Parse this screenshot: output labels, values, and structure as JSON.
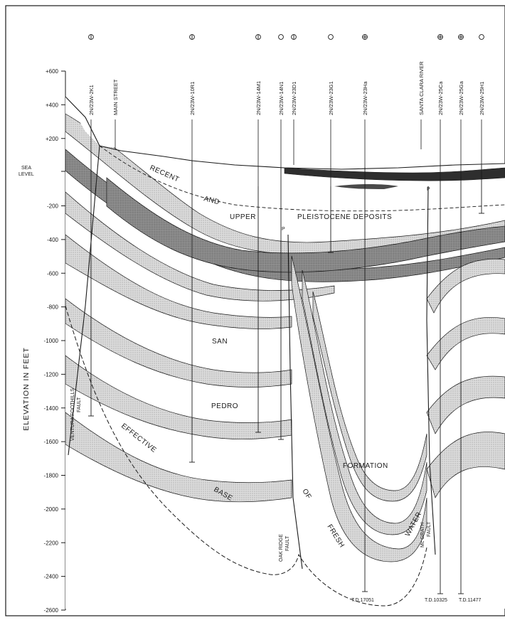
{
  "page": {
    "axis_title": "ELEVATION IN FEET",
    "sea_level_label": [
      "SEA",
      "LEVEL"
    ]
  },
  "colors": {
    "ink": "#1a1a1a",
    "sand_fill": "#d8d8d8",
    "dark_fill": "#8a8a8a",
    "recent_fill": "#2e2e2e",
    "background": "#ffffff"
  },
  "elevation_ticks": [
    "+600",
    "+400",
    "+200",
    "-200",
    "-400",
    "-600",
    "-800",
    "-1000",
    "-1200",
    "-1400",
    "-1600",
    "-1800",
    "-2000",
    "-2200",
    "-2400",
    "-2600"
  ],
  "elevation_values": [
    600,
    400,
    200,
    -200,
    -400,
    -600,
    -800,
    -1000,
    -1200,
    -1400,
    -1600,
    -1800,
    -2000,
    -2200,
    -2400,
    -2600
  ],
  "wells": [
    {
      "label": "2N/23W-2K1",
      "symbol": "circle-bar"
    },
    {
      "label": "MAIN STREET",
      "symbol": "none"
    },
    {
      "label": "2N/23W-10R1",
      "symbol": "circle-bar"
    },
    {
      "label": "2N/23W-14M1",
      "symbol": "circle-bar"
    },
    {
      "label": "2N/23W-14N1",
      "symbol": "circle"
    },
    {
      "label": "2N/23W-23D1",
      "symbol": "circle-bar"
    },
    {
      "label": "2N/23W-23G1",
      "symbol": "circle"
    },
    {
      "label": "2N/23W-23Ha",
      "symbol": "circle-plus"
    },
    {
      "label": "SANTA CLARA RIVER",
      "symbol": "none"
    },
    {
      "label": "2N/23W-25Ca",
      "symbol": "circle-plus"
    },
    {
      "label": "2N/23W-25Ga",
      "symbol": "circle-plus"
    },
    {
      "label": "2N/23W-25H1",
      "symbol": "circle"
    }
  ],
  "formation_labels": {
    "recent": "RECENT",
    "and": "AND",
    "upper": "UPPER",
    "pleistocene": "PLEISTOCENE DEPOSITS",
    "san": "SAN",
    "pedro": "PEDRO",
    "formation": "FORMATION",
    "effective": "EFFECTIVE",
    "base": "BASE",
    "of": "OF",
    "fresh": "FRESH",
    "water": "WATER"
  },
  "faults": {
    "ventura": [
      "VENTURA FOOTHILLS",
      "FAULT"
    ],
    "oak_ridge": [
      "OAK RIDGE",
      "FAULT"
    ],
    "mcgrath": [
      "Mc GRATH",
      "FAULT"
    ]
  },
  "total_depths": [
    "T.D.17051",
    "T.D.10325",
    "T.D.11477"
  ],
  "marks": {
    "p1": "P",
    "p2": "P"
  }
}
